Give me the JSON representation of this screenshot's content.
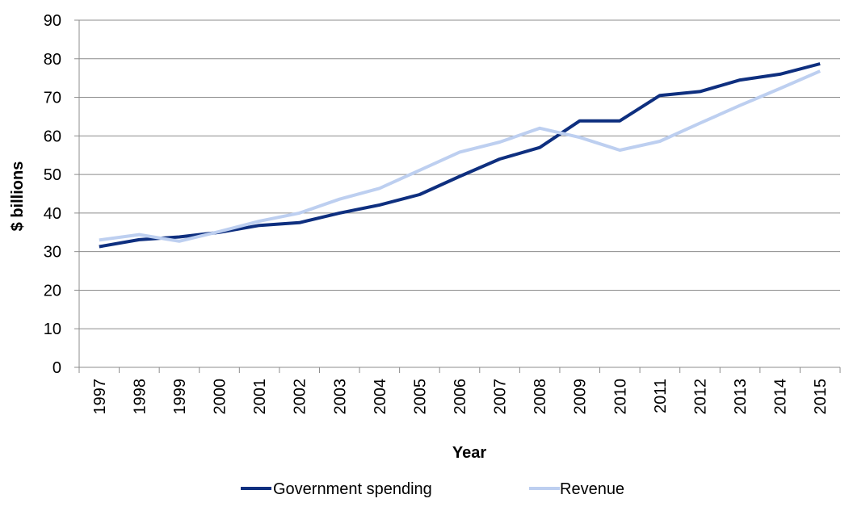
{
  "chart_data": {
    "type": "line",
    "title": "",
    "xlabel": "Year",
    "ylabel": "$ billions",
    "ylim": [
      0,
      90
    ],
    "yticks": [
      "0",
      "10",
      "20",
      "30",
      "40",
      "50",
      "60",
      "70",
      "80",
      "90"
    ],
    "categories": [
      "1997",
      "1998",
      "1999",
      "2000",
      "2001",
      "2002",
      "2003",
      "2004",
      "2005",
      "2006",
      "2007",
      "2008",
      "2009",
      "2010",
      "2011",
      "2012",
      "2013",
      "2014",
      "2015"
    ],
    "grid": true,
    "legend_position": "bottom",
    "series": [
      {
        "name": "Government spending",
        "color": "#0e2f7f",
        "values": [
          31.3,
          33.1,
          33.8,
          35.0,
          36.8,
          37.5,
          40.0,
          42.1,
          44.8,
          49.5,
          54.0,
          57.0,
          63.9,
          63.9,
          70.5,
          71.5,
          74.5,
          76.0,
          78.7
        ]
      },
      {
        "name": "Revenue",
        "color": "#bdcff0",
        "values": [
          33.0,
          34.4,
          32.7,
          35.2,
          37.9,
          40.0,
          43.6,
          46.4,
          51.1,
          55.8,
          58.4,
          62.0,
          59.6,
          56.3,
          58.6,
          63.3,
          67.9,
          72.3,
          76.8
        ]
      }
    ]
  }
}
